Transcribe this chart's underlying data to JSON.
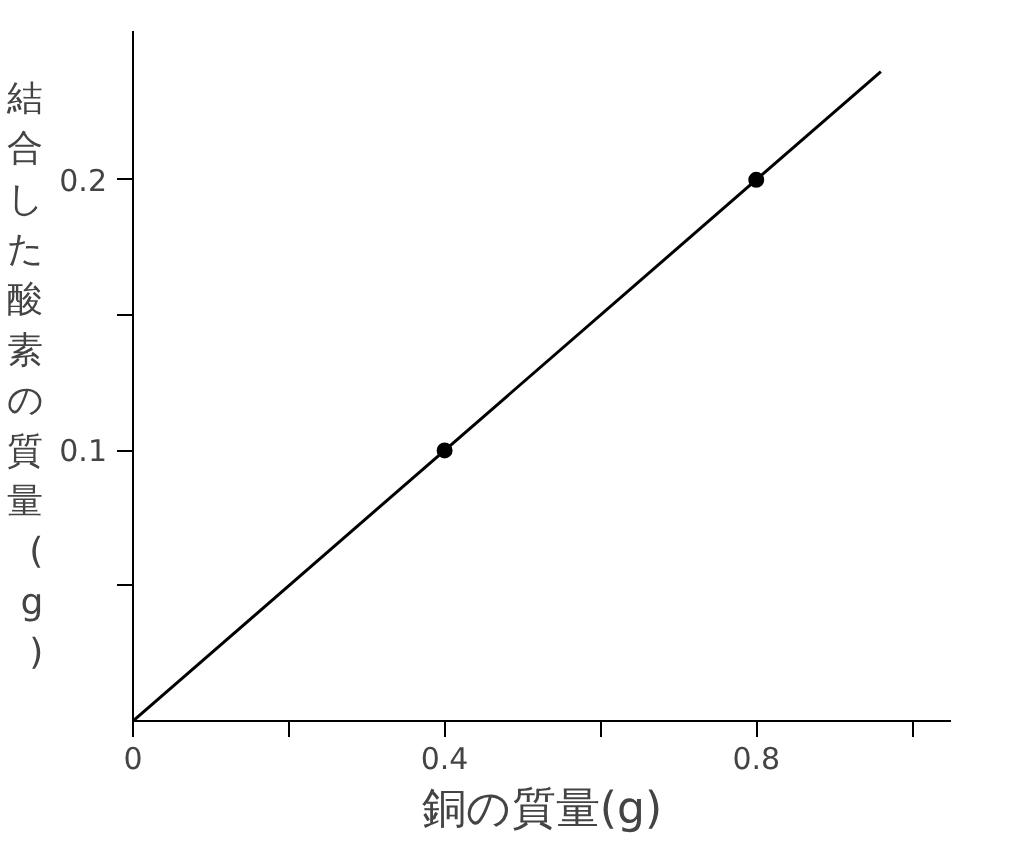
{
  "chart_data": {
    "type": "scatter",
    "xlabel": "銅の質量(g)",
    "ylabel": "結合した酸素の質量(g)",
    "xlim": [
      0,
      1.05
    ],
    "ylim": [
      0,
      0.255
    ],
    "xticks": [
      {
        "value": 0,
        "label": "0"
      },
      {
        "value": 0.2,
        "label": null
      },
      0.4,
      {
        "value": 0.6,
        "label": null
      },
      0.8,
      {
        "value": 1.0,
        "label": null
      }
    ],
    "yticks": [
      {
        "value": 0.05,
        "label": null
      },
      0.1,
      {
        "value": 0.15,
        "label": null
      },
      0.2
    ],
    "grid": false,
    "series": [
      {
        "type": "line",
        "color": "#000000",
        "x": [
          0,
          0.96
        ],
        "values": [
          0,
          0.24
        ],
        "marker": "none"
      },
      {
        "color": "#000000",
        "x": [
          0.4,
          0.8
        ],
        "values": [
          0.1,
          0.2
        ],
        "marker": "circle"
      }
    ]
  }
}
